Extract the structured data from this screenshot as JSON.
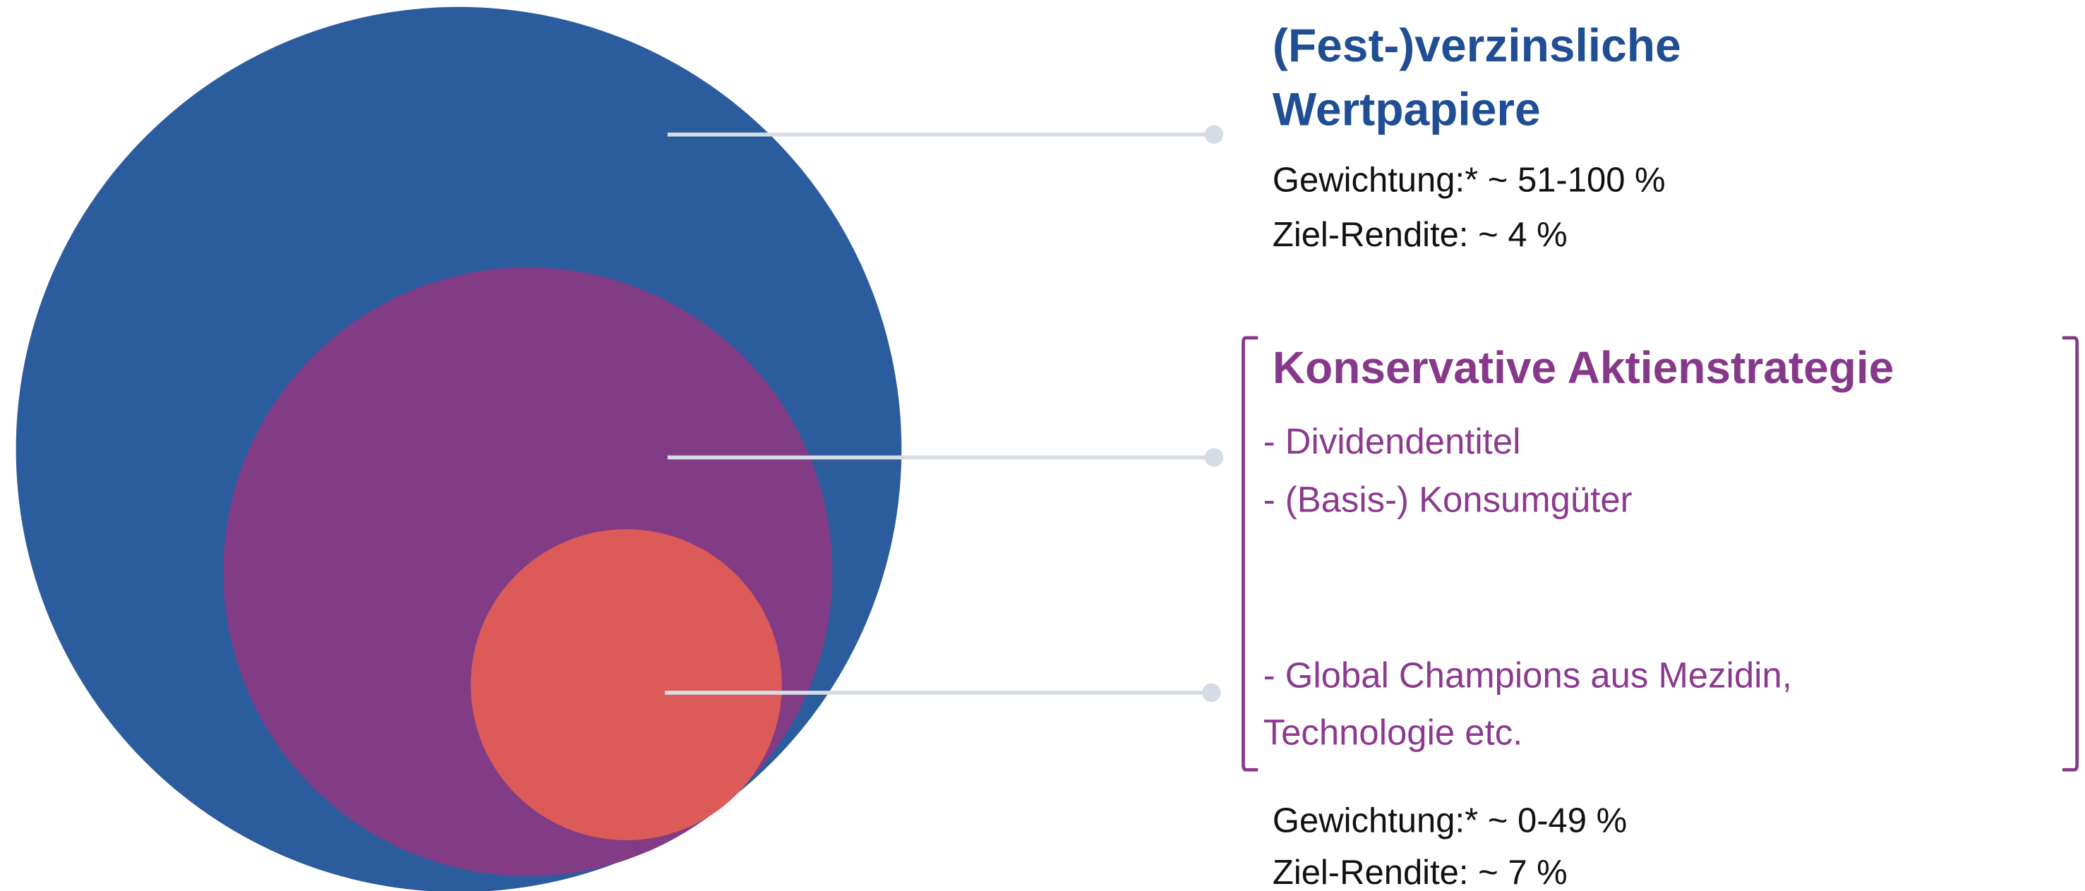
{
  "sections": [
    {
      "title_lines": [
        "(Fest-)verzinsliche",
        "Wertpapiere"
      ],
      "weighting": "Gewichtung:* ~ 51-100 %",
      "target_return": "Ziel-Rendite: ~ 4 %"
    },
    {
      "title": "Konservative Aktienstrategie",
      "items": [
        "- Dividendentitel",
        "- (Basis-) Konsumgüter",
        "- Global Champions aus Mezidin,",
        "Technologie etc."
      ],
      "weighting": "Gewichtung:* ~ 0-49 %",
      "target_return": "Ziel-Rendite: ~ 7 %"
    }
  ]
}
